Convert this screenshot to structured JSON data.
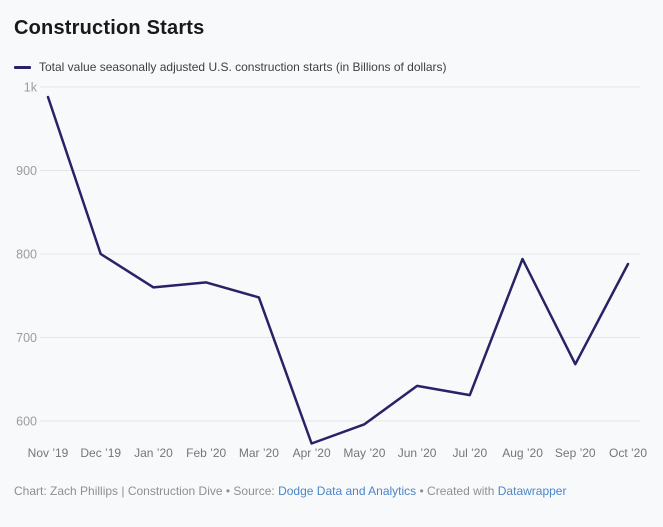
{
  "header": {
    "title": "Construction Starts"
  },
  "legend": {
    "label": "Total value seasonally adjusted U.S. construction starts (in Billions of dollars)"
  },
  "chart_data": {
    "type": "line",
    "title": "Construction Starts",
    "categories": [
      "Nov ’19",
      "Dec ’19",
      "Jan ’20",
      "Feb ’20",
      "Mar ’20",
      "Apr ’20",
      "May ’20",
      "Jun ’20",
      "Jul ’20",
      "Aug ’20",
      "Sep ’20",
      "Oct ’20"
    ],
    "series": [
      {
        "name": "Total value seasonally adjusted U.S. construction starts (in Billions of dollars)",
        "color": "#272366",
        "values": [
          988,
          800,
          760,
          766,
          748,
          573,
          596,
          642,
          631,
          794,
          668,
          788
        ]
      }
    ],
    "xlabel": "",
    "ylabel": "",
    "ylim": [
      560,
      1000
    ],
    "yticks": [
      {
        "value": 1000,
        "label": "1k"
      },
      {
        "value": 900,
        "label": "900"
      },
      {
        "value": 800,
        "label": "800"
      },
      {
        "value": 700,
        "label": "700"
      },
      {
        "value": 600,
        "label": "600"
      }
    ],
    "grid": true,
    "legend_position": "top"
  },
  "footer": {
    "parts": [
      {
        "text": "Chart: Zach Phillips | Construction Dive • Source: ",
        "link": false
      },
      {
        "text": "Dodge Data and Analytics",
        "link": true
      },
      {
        "text": " • Created with ",
        "link": false
      },
      {
        "text": "Datawrapper",
        "link": true
      }
    ]
  },
  "colors": {
    "background": "#f8f9fb",
    "title": "#17191d",
    "line": "#272366",
    "gridline": "#e4e5e8",
    "y_tick_label": "#9b9ca0",
    "x_tick_label": "#74767a",
    "footer_text": "#8e8f93",
    "footer_link": "#4a86c9"
  }
}
